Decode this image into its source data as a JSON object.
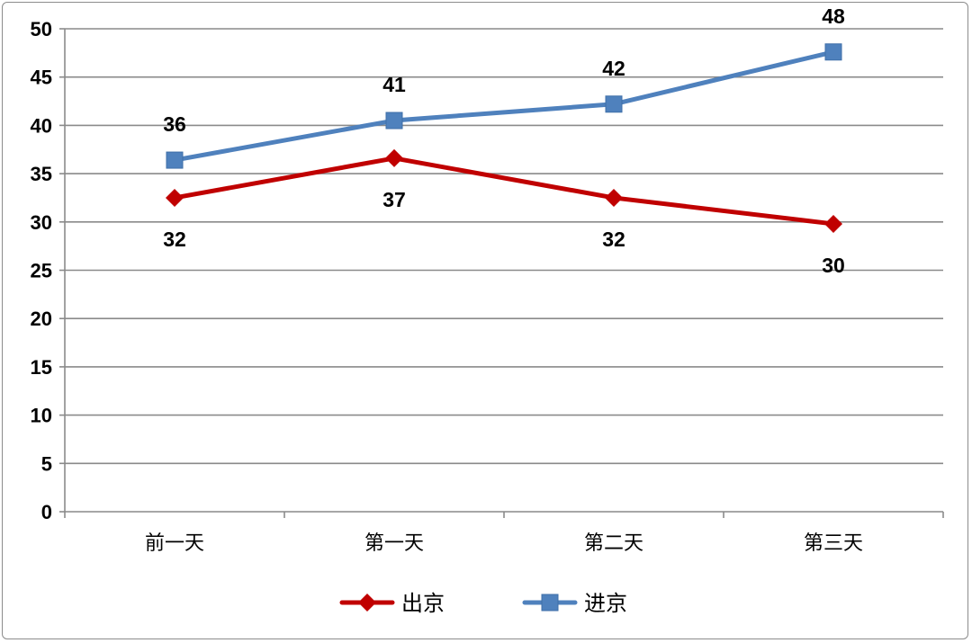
{
  "chart_data": {
    "type": "line",
    "categories": [
      "前一天",
      "第一天",
      "第二天",
      "第三天"
    ],
    "series": [
      {
        "name": "出京",
        "values": [
          32.5,
          36.6,
          32.5,
          29.8
        ],
        "labels": [
          "32",
          "37",
          "32",
          "30"
        ],
        "label_position": "below",
        "color": "#c00000",
        "marker": "diamond"
      },
      {
        "name": "进京",
        "values": [
          36.4,
          40.5,
          42.2,
          47.6
        ],
        "labels": [
          "36",
          "41",
          "42",
          "48"
        ],
        "label_position": "above",
        "color": "#4f81bd",
        "marker": "square"
      }
    ],
    "ylim": [
      0,
      50
    ],
    "yticks": [
      0,
      5,
      10,
      15,
      20,
      25,
      30,
      35,
      40,
      45,
      50
    ],
    "grid": true,
    "legend": "bottom-center",
    "title": "",
    "xlabel": "",
    "ylabel": ""
  }
}
